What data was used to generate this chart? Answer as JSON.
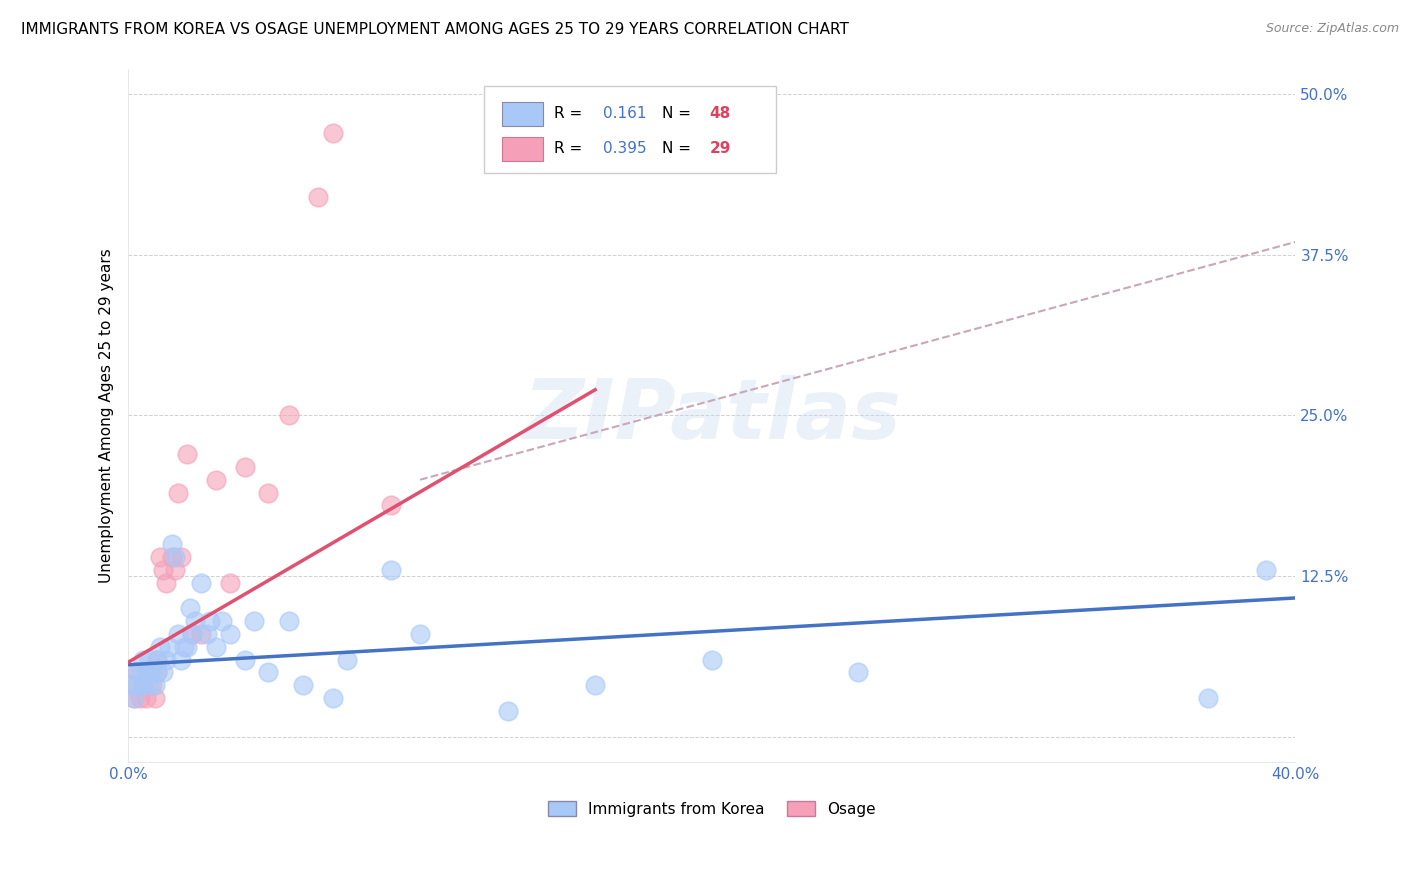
{
  "title": "IMMIGRANTS FROM KOREA VS OSAGE UNEMPLOYMENT AMONG AGES 25 TO 29 YEARS CORRELATION CHART",
  "source": "Source: ZipAtlas.com",
  "ylabel": "Unemployment Among Ages 25 to 29 years",
  "xlim": [
    0.0,
    0.4
  ],
  "ylim": [
    -0.02,
    0.52
  ],
  "xticks": [
    0.0,
    0.05,
    0.1,
    0.15,
    0.2,
    0.25,
    0.3,
    0.35,
    0.4
  ],
  "xticklabels": [
    "0.0%",
    "",
    "",
    "",
    "",
    "",
    "",
    "",
    "40.0%"
  ],
  "yticks": [
    0.0,
    0.125,
    0.25,
    0.375,
    0.5
  ],
  "yticklabels": [
    "",
    "12.5%",
    "25.0%",
    "37.5%",
    "50.0%"
  ],
  "title_fontsize": 11,
  "axis_label_fontsize": 11,
  "tick_fontsize": 11,
  "blue_color": "#a8c8f8",
  "pink_color": "#f5a0b8",
  "trend_blue_color": "#4472c4",
  "trend_pink_color": "#e05070",
  "dashed_color": "#c8a8b8",
  "watermark": "ZIPatlas",
  "blue_scatter_x": [
    0.001,
    0.002,
    0.003,
    0.003,
    0.004,
    0.005,
    0.005,
    0.006,
    0.007,
    0.007,
    0.008,
    0.009,
    0.01,
    0.01,
    0.011,
    0.012,
    0.013,
    0.014,
    0.015,
    0.016,
    0.017,
    0.018,
    0.019,
    0.02,
    0.021,
    0.022,
    0.023,
    0.025,
    0.027,
    0.028,
    0.03,
    0.032,
    0.035,
    0.04,
    0.043,
    0.048,
    0.055,
    0.06,
    0.07,
    0.075,
    0.09,
    0.1,
    0.13,
    0.16,
    0.2,
    0.25,
    0.37,
    0.39
  ],
  "blue_scatter_y": [
    0.04,
    0.03,
    0.05,
    0.04,
    0.05,
    0.04,
    0.06,
    0.05,
    0.04,
    0.06,
    0.05,
    0.04,
    0.06,
    0.05,
    0.07,
    0.05,
    0.06,
    0.07,
    0.15,
    0.14,
    0.08,
    0.06,
    0.07,
    0.07,
    0.1,
    0.08,
    0.09,
    0.12,
    0.08,
    0.09,
    0.07,
    0.09,
    0.08,
    0.06,
    0.09,
    0.05,
    0.09,
    0.04,
    0.03,
    0.06,
    0.13,
    0.08,
    0.02,
    0.04,
    0.06,
    0.05,
    0.03,
    0.13
  ],
  "pink_scatter_x": [
    0.001,
    0.002,
    0.003,
    0.004,
    0.005,
    0.006,
    0.007,
    0.008,
    0.009,
    0.01,
    0.01,
    0.011,
    0.012,
    0.013,
    0.015,
    0.016,
    0.017,
    0.018,
    0.02,
    0.022,
    0.025,
    0.03,
    0.035,
    0.04,
    0.048,
    0.055,
    0.065,
    0.07,
    0.09
  ],
  "pink_scatter_y": [
    0.04,
    0.03,
    0.05,
    0.03,
    0.04,
    0.03,
    0.05,
    0.04,
    0.03,
    0.05,
    0.06,
    0.14,
    0.13,
    0.12,
    0.14,
    0.13,
    0.19,
    0.14,
    0.22,
    0.08,
    0.08,
    0.2,
    0.12,
    0.21,
    0.19,
    0.25,
    0.42,
    0.47,
    0.18
  ],
  "blue_trend_x": [
    0.0,
    0.4
  ],
  "blue_trend_y": [
    0.056,
    0.108
  ],
  "pink_trend_x": [
    0.0,
    0.16
  ],
  "pink_trend_y": [
    0.058,
    0.27
  ],
  "dashed_trend_x": [
    0.1,
    0.4
  ],
  "dashed_trend_y": [
    0.2,
    0.385
  ]
}
